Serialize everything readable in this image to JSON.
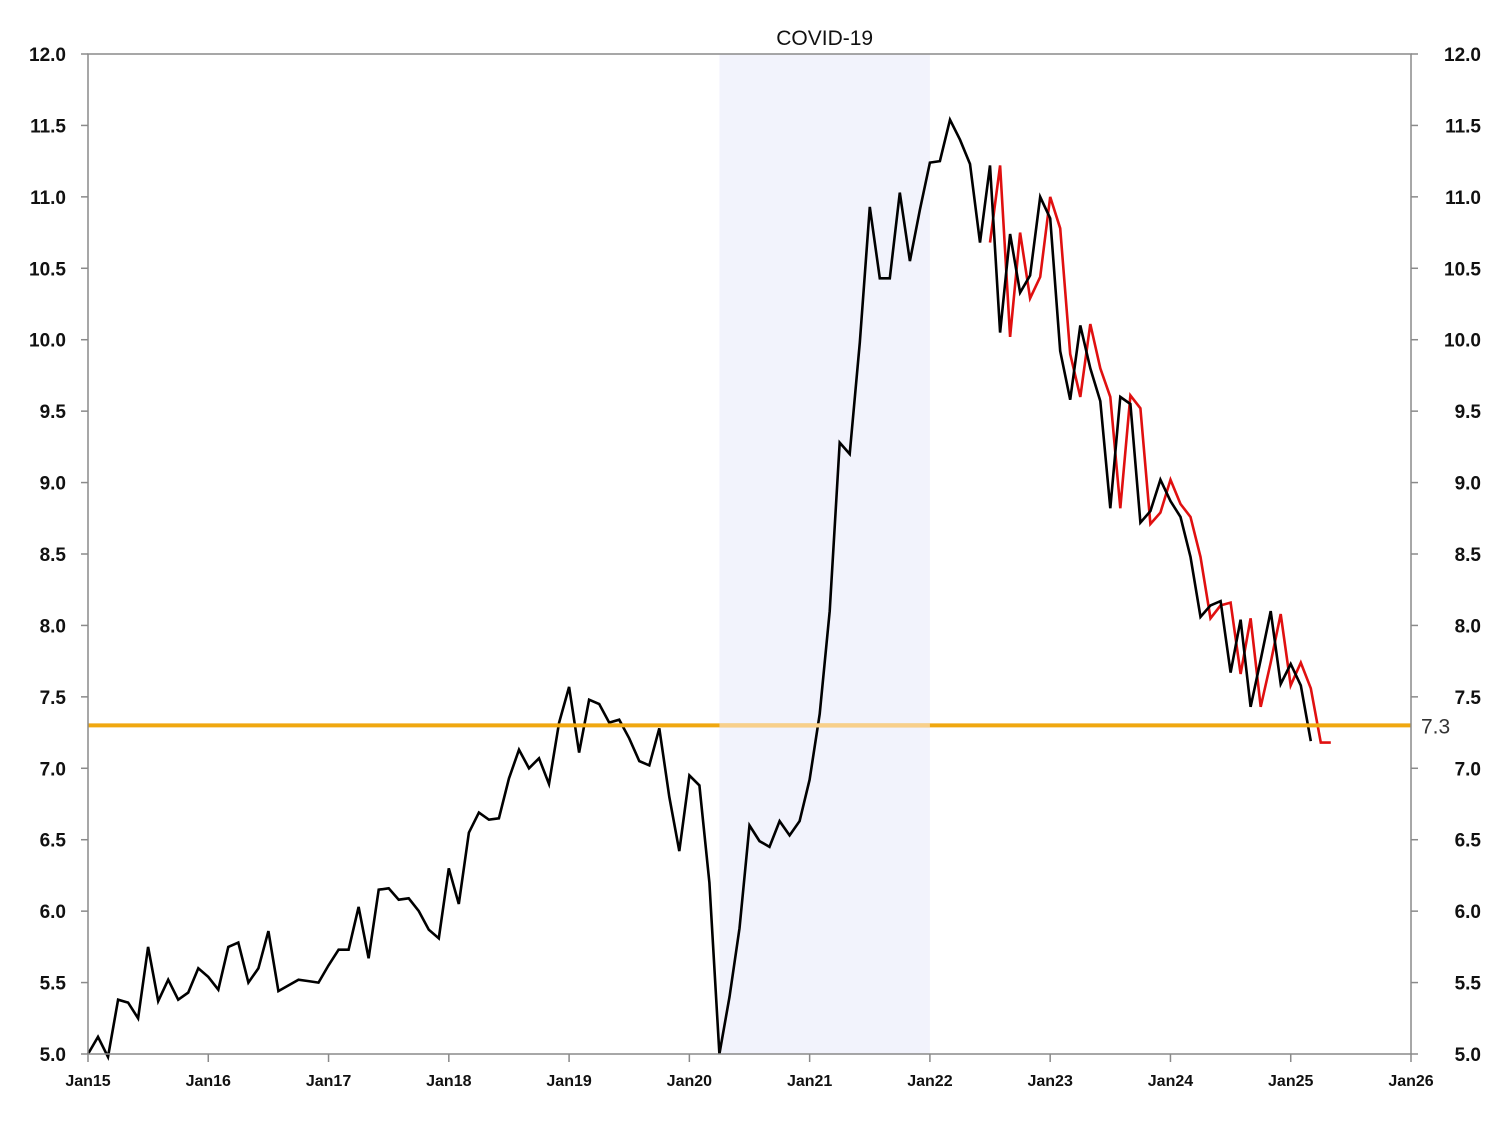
{
  "chart_data": {
    "type": "line",
    "title": "",
    "xlabel": "",
    "ylabel": "",
    "ylim": [
      5.0,
      12.0
    ],
    "y_ticks": [
      "5.0",
      "5.5",
      "6.0",
      "6.5",
      "7.0",
      "7.5",
      "8.0",
      "8.5",
      "9.0",
      "9.5",
      "10.0",
      "10.5",
      "11.0",
      "11.5",
      "12.0"
    ],
    "y_axis_right": true,
    "x_range": [
      "2015-01",
      "2026-01"
    ],
    "x_ticks": [
      {
        "date": "2015-01",
        "label": "Jan15"
      },
      {
        "date": "2016-01",
        "label": "Jan16"
      },
      {
        "date": "2017-01",
        "label": "Jan17"
      },
      {
        "date": "2018-01",
        "label": "Jan18"
      },
      {
        "date": "2019-01",
        "label": "Jan19"
      },
      {
        "date": "2020-01",
        "label": "Jan20"
      },
      {
        "date": "2021-01",
        "label": "Jan21"
      },
      {
        "date": "2022-01",
        "label": "Jan22"
      },
      {
        "date": "2023-01",
        "label": "Jan23"
      },
      {
        "date": "2024-01",
        "label": "Jan24"
      },
      {
        "date": "2025-01",
        "label": "Jan25"
      },
      {
        "date": "2026-01",
        "label": "Jan26"
      }
    ],
    "grid": false,
    "shaded_period": {
      "start": "2020-04",
      "end": "2022-01",
      "label": "COVID-19",
      "color": "#f2f3fc"
    },
    "reference_line": {
      "value": 7.3,
      "label": "7.3",
      "color": "#f0a810"
    },
    "series": [
      {
        "color": "#000000",
        "points": [
          [
            "2015-01",
            5.0
          ],
          [
            "2015-02",
            5.12
          ],
          [
            "2015-03",
            4.98
          ],
          [
            "2015-04",
            5.38
          ],
          [
            "2015-05",
            5.36
          ],
          [
            "2015-06",
            5.25
          ],
          [
            "2015-07",
            5.75
          ],
          [
            "2015-08",
            5.37
          ],
          [
            "2015-09",
            5.52
          ],
          [
            "2015-10",
            5.38
          ],
          [
            "2015-11",
            5.43
          ],
          [
            "2015-12",
            5.6
          ],
          [
            "2016-01",
            5.54
          ],
          [
            "2016-02",
            5.45
          ],
          [
            "2016-03",
            5.75
          ],
          [
            "2016-04",
            5.78
          ],
          [
            "2016-05",
            5.5
          ],
          [
            "2016-06",
            5.6
          ],
          [
            "2016-07",
            5.86
          ],
          [
            "2016-08",
            5.44
          ],
          [
            "2016-09",
            5.48
          ],
          [
            "2016-10",
            5.52
          ],
          [
            "2016-11",
            5.51
          ],
          [
            "2016-12",
            5.5
          ],
          [
            "2017-01",
            5.62
          ],
          [
            "2017-02",
            5.73
          ],
          [
            "2017-03",
            5.73
          ],
          [
            "2017-04",
            6.03
          ],
          [
            "2017-05",
            5.67
          ],
          [
            "2017-06",
            6.15
          ],
          [
            "2017-07",
            6.16
          ],
          [
            "2017-08",
            6.08
          ],
          [
            "2017-09",
            6.09
          ],
          [
            "2017-10",
            6.0
          ],
          [
            "2017-11",
            5.87
          ],
          [
            "2017-12",
            5.81
          ],
          [
            "2018-01",
            6.3
          ],
          [
            "2018-02",
            6.05
          ],
          [
            "2018-03",
            6.55
          ],
          [
            "2018-04",
            6.69
          ],
          [
            "2018-05",
            6.64
          ],
          [
            "2018-06",
            6.65
          ],
          [
            "2018-07",
            6.93
          ],
          [
            "2018-08",
            7.13
          ],
          [
            "2018-09",
            7.0
          ],
          [
            "2018-10",
            7.07
          ],
          [
            "2018-11",
            6.89
          ],
          [
            "2018-12",
            7.32
          ],
          [
            "2019-01",
            7.57
          ],
          [
            "2019-02",
            7.11
          ],
          [
            "2019-03",
            7.48
          ],
          [
            "2019-04",
            7.45
          ],
          [
            "2019-05",
            7.32
          ],
          [
            "2019-06",
            7.34
          ],
          [
            "2019-07",
            7.21
          ],
          [
            "2019-08",
            7.05
          ],
          [
            "2019-09",
            7.02
          ],
          [
            "2019-10",
            7.28
          ],
          [
            "2019-11",
            6.8
          ],
          [
            "2019-12",
            6.42
          ],
          [
            "2020-01",
            6.95
          ],
          [
            "2020-02",
            6.88
          ],
          [
            "2020-03",
            6.2
          ],
          [
            "2020-04",
            5.0
          ],
          [
            "2020-05",
            5.4
          ],
          [
            "2020-06",
            5.88
          ],
          [
            "2020-07",
            6.6
          ],
          [
            "2020-08",
            6.49
          ],
          [
            "2020-09",
            6.45
          ],
          [
            "2020-10",
            6.63
          ],
          [
            "2020-11",
            6.53
          ],
          [
            "2020-12",
            6.63
          ],
          [
            "2021-01",
            6.92
          ],
          [
            "2021-02",
            7.38
          ],
          [
            "2021-03",
            8.1
          ],
          [
            "2021-04",
            9.28
          ],
          [
            "2021-05",
            9.2
          ],
          [
            "2021-06",
            9.98
          ],
          [
            "2021-07",
            10.93
          ],
          [
            "2021-08",
            10.43
          ],
          [
            "2021-09",
            10.43
          ],
          [
            "2021-10",
            11.03
          ],
          [
            "2021-11",
            10.55
          ],
          [
            "2021-12",
            10.91
          ],
          [
            "2022-01",
            11.24
          ],
          [
            "2022-02",
            11.25
          ],
          [
            "2022-03",
            11.54
          ],
          [
            "2022-04",
            11.4
          ],
          [
            "2022-05",
            11.23
          ],
          [
            "2022-06",
            10.68
          ],
          [
            "2022-07",
            11.22
          ],
          [
            "2022-08",
            10.05
          ],
          [
            "2022-09",
            10.74
          ],
          [
            "2022-10",
            10.33
          ],
          [
            "2022-11",
            10.45
          ],
          [
            "2022-12",
            11.0
          ],
          [
            "2023-01",
            10.85
          ],
          [
            "2023-02",
            9.92
          ],
          [
            "2023-03",
            9.58
          ],
          [
            "2023-04",
            10.1
          ],
          [
            "2023-05",
            9.8
          ],
          [
            "2023-06",
            9.57
          ],
          [
            "2023-07",
            8.82
          ],
          [
            "2023-08",
            9.6
          ],
          [
            "2023-09",
            9.55
          ],
          [
            "2023-10",
            8.72
          ],
          [
            "2023-11",
            8.8
          ],
          [
            "2023-12",
            9.02
          ],
          [
            "2024-01",
            8.87
          ],
          [
            "2024-02",
            8.76
          ],
          [
            "2024-03",
            8.48
          ],
          [
            "2024-04",
            8.06
          ],
          [
            "2024-05",
            8.14
          ],
          [
            "2024-06",
            8.17
          ],
          [
            "2024-07",
            7.67
          ],
          [
            "2024-08",
            8.04
          ],
          [
            "2024-09",
            7.43
          ],
          [
            "2024-10",
            7.76
          ],
          [
            "2024-11",
            8.1
          ],
          [
            "2024-12",
            7.59
          ],
          [
            "2025-01",
            7.73
          ],
          [
            "2025-02",
            7.58
          ],
          [
            "2025-03",
            7.19
          ]
        ]
      },
      {
        "color": "#e01010",
        "points": [
          [
            "2022-07",
            10.68
          ],
          [
            "2022-08",
            11.22
          ],
          [
            "2022-09",
            10.02
          ],
          [
            "2022-10",
            10.75
          ],
          [
            "2022-11",
            10.29
          ],
          [
            "2022-12",
            10.44
          ],
          [
            "2023-01",
            11.0
          ],
          [
            "2023-02",
            10.78
          ],
          [
            "2023-03",
            9.9
          ],
          [
            "2023-04",
            9.6
          ],
          [
            "2023-05",
            10.11
          ],
          [
            "2023-06",
            9.8
          ],
          [
            "2023-07",
            9.6
          ],
          [
            "2023-08",
            8.82
          ],
          [
            "2023-09",
            9.61
          ],
          [
            "2023-10",
            9.52
          ],
          [
            "2023-11",
            8.71
          ],
          [
            "2023-12",
            8.79
          ],
          [
            "2024-01",
            9.02
          ],
          [
            "2024-02",
            8.85
          ],
          [
            "2024-03",
            8.76
          ],
          [
            "2024-04",
            8.48
          ],
          [
            "2024-05",
            8.05
          ],
          [
            "2024-06",
            8.14
          ],
          [
            "2024-07",
            8.16
          ],
          [
            "2024-08",
            7.66
          ],
          [
            "2024-09",
            8.05
          ],
          [
            "2024-10",
            7.43
          ],
          [
            "2024-11",
            7.74
          ],
          [
            "2024-12",
            8.08
          ],
          [
            "2025-01",
            7.58
          ],
          [
            "2025-02",
            7.74
          ],
          [
            "2025-03",
            7.56
          ],
          [
            "2025-04",
            7.18
          ],
          [
            "2025-05",
            7.18
          ]
        ]
      }
    ]
  }
}
